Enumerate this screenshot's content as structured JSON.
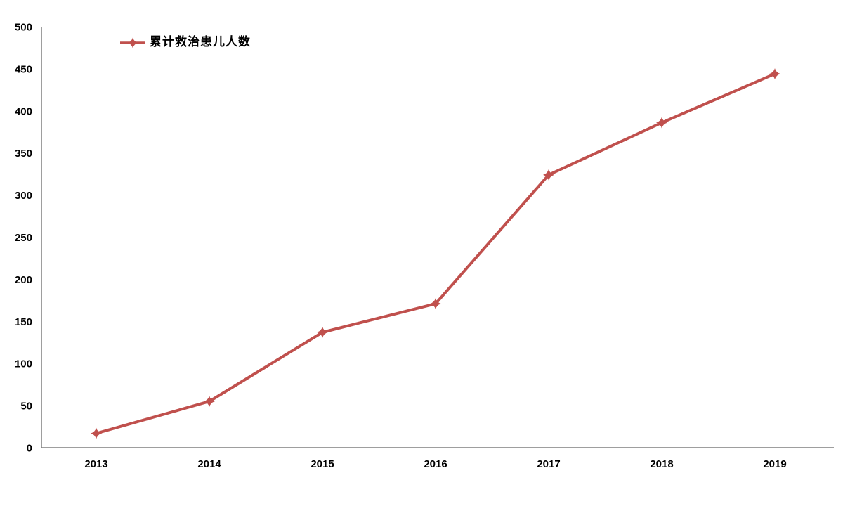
{
  "chart_data": {
    "type": "line",
    "title": "",
    "xlabel": "",
    "ylabel": "",
    "categories": [
      "2013",
      "2014",
      "2015",
      "2016",
      "2017",
      "2018",
      "2019"
    ],
    "series": [
      {
        "name": "累计救治患儿人数",
        "values": [
          17,
          55,
          137,
          171,
          324,
          386,
          444
        ]
      }
    ],
    "ylim": [
      0,
      500
    ],
    "ytick_step": 50,
    "yticks": [
      0,
      50,
      100,
      150,
      200,
      250,
      300,
      350,
      400,
      450,
      500
    ],
    "grid": false,
    "legend_position": "top-left",
    "marker": "diamond-star",
    "colors": {
      "series": "#C0504D",
      "axis": "#7F7F7F",
      "tick_text": "#000000",
      "background": "#FFFFFF"
    }
  }
}
